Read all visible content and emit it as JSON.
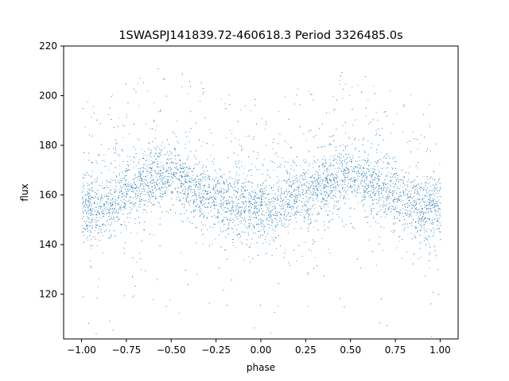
{
  "chart_data": {
    "type": "scatter",
    "title": "1SWASPJ141839.72-460618.3 Period 3326485.0s",
    "xlabel": "phase",
    "ylabel": "flux",
    "xlim": [
      -1.1,
      1.1
    ],
    "ylim": [
      102,
      220
    ],
    "xticks": [
      -1.0,
      -0.75,
      -0.5,
      -0.25,
      0.0,
      0.25,
      0.5,
      0.75,
      1.0
    ],
    "xtick_labels": [
      "−1.00",
      "−0.75",
      "−0.50",
      "−0.25",
      "0.00",
      "0.25",
      "0.50",
      "0.75",
      "1.00"
    ],
    "yticks": [
      120,
      140,
      160,
      180,
      200,
      220
    ],
    "ytick_labels": [
      "120",
      "140",
      "160",
      "180",
      "200",
      "220"
    ],
    "grid": false,
    "legend": "none",
    "series": [
      {
        "color": "#1f77b4",
        "marker": "point",
        "x_range": [
          -1.0,
          1.0
        ],
        "note_points": "dense folded light curve; mirrored at phase +/-1",
        "trend": {
          "x": [
            -1.0,
            -0.9,
            -0.8,
            -0.7,
            -0.6,
            -0.5,
            -0.4,
            -0.3,
            -0.2,
            -0.1,
            0.0,
            0.1,
            0.2,
            0.3,
            0.4,
            0.5,
            0.6,
            0.7,
            0.8,
            0.9,
            1.0
          ],
          "y": [
            156,
            154,
            158,
            164,
            167,
            168,
            164,
            160,
            158,
            155,
            153,
            156,
            160,
            163,
            166,
            168,
            165,
            162,
            158,
            154,
            156
          ]
        }
      }
    ]
  }
}
